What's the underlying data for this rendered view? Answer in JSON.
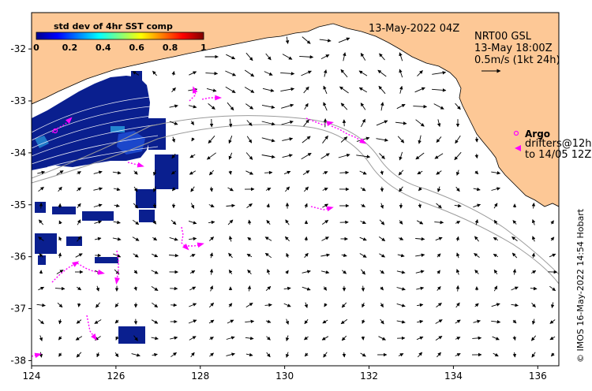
{
  "map": {
    "date_label": "13-May-2022 04Z",
    "product_label": "NRT00 GSL",
    "current_time_label": "13-May 18:00Z",
    "scale_label": "0.5m/s (1kt 24h)",
    "credit": "© IMOS 16-May-2022 14:54 Hobart",
    "lon_ticks": [
      "124",
      "126",
      "128",
      "130",
      "132",
      "134",
      "136"
    ],
    "lat_ticks": [
      "-32",
      "-33",
      "-34",
      "-35",
      "-36",
      "-37",
      "-38"
    ],
    "lon_range": [
      124,
      136.5
    ],
    "lat_range": [
      -38.1,
      -31.3
    ],
    "colors": {
      "land": "#fdc896",
      "ocean": "#ffffff",
      "sst_dark": "#0a1f8f",
      "sst_mid": "#1e4fd6",
      "drifter": "#ff00ff",
      "contour": "#9a9a9a"
    }
  },
  "colorbar": {
    "title": "std dev of 4hr SST comp",
    "ticks": [
      "0",
      "0.2",
      "0.4",
      "0.6",
      "0.8",
      "1"
    ],
    "range": [
      0,
      1
    ],
    "colormap": "jet"
  },
  "legend": {
    "argo_label": "Argo",
    "drifters_line1": "drifters@12h",
    "drifters_line2": "to 14/05 12Z"
  }
}
